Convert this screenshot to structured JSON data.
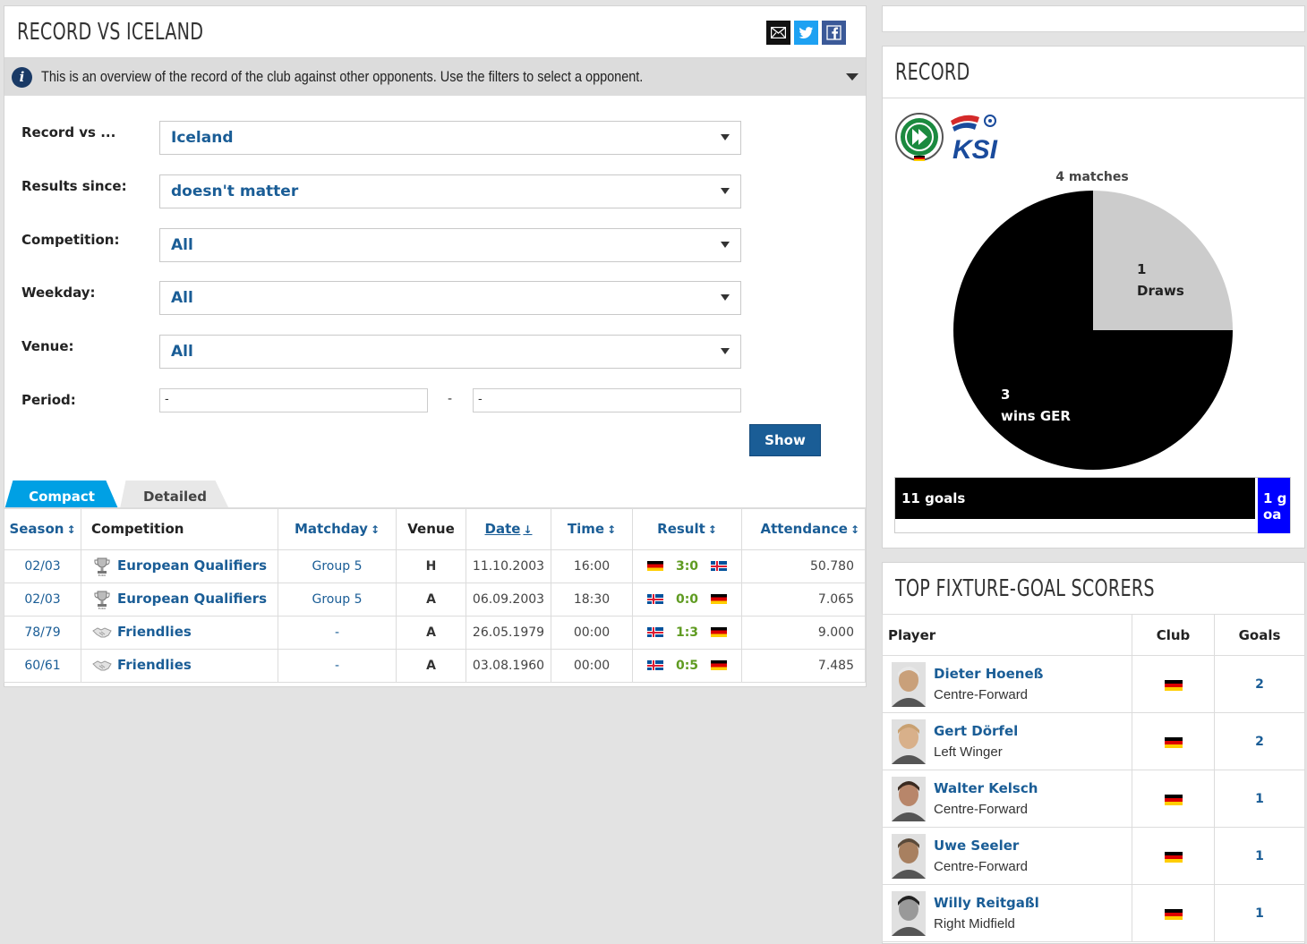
{
  "main": {
    "title": "RECORD VS ICELAND",
    "info_text": "This is an overview of the record of the club against other opponents. Use the filters to select a opponent.",
    "filters": [
      {
        "label": "Record vs ...",
        "value": "Iceland"
      },
      {
        "label": "Results since:",
        "value": "doesn't matter"
      },
      {
        "label": "Competition:",
        "value": "All"
      },
      {
        "label": "Weekday:",
        "value": "All"
      },
      {
        "label": "Venue:",
        "value": "All"
      }
    ],
    "period": {
      "label": "Period:",
      "from": "-",
      "separator": "-",
      "to": "-"
    },
    "show_button": "Show",
    "tabs": [
      "Compact",
      "Detailed"
    ],
    "columns": [
      "Season",
      "Competition",
      "Matchday",
      "Venue",
      "Date",
      "Time",
      "Result",
      "Attendance"
    ],
    "matches": [
      {
        "season": "02/03",
        "competition": "European Qualifiers",
        "matchday": "Group 5",
        "venue": "H",
        "date": "11.10.2003",
        "time": "16:00",
        "home_flag": "de",
        "score": "3:0",
        "away_flag": "is",
        "attendance": "50.780"
      },
      {
        "season": "02/03",
        "competition": "European Qualifiers",
        "matchday": "Group 5",
        "venue": "A",
        "date": "06.09.2003",
        "time": "18:30",
        "home_flag": "is",
        "score": "0:0",
        "away_flag": "de",
        "attendance": "7.065"
      },
      {
        "season": "78/79",
        "competition": "Friendlies",
        "matchday": "-",
        "venue": "A",
        "date": "26.05.1979",
        "time": "00:00",
        "home_flag": "is",
        "score": "1:3",
        "away_flag": "de",
        "attendance": "9.000"
      },
      {
        "season": "60/61",
        "competition": "Friendlies",
        "matchday": "-",
        "venue": "A",
        "date": "03.08.1960",
        "time": "00:00",
        "home_flag": "is",
        "score": "0:5",
        "away_flag": "de",
        "attendance": "7.485"
      }
    ]
  },
  "record": {
    "title": "RECORD",
    "matches_label": "4 matches",
    "ksi_text": "KSI",
    "draws_count": "1",
    "draws_label": "Draws",
    "wins_count": "3",
    "wins_label": "wins GER",
    "goals_home": "11 goals",
    "goals_away": "1 goa"
  },
  "chart_data": {
    "type": "pie",
    "title": "4 matches",
    "categories": [
      "wins GER",
      "Draws"
    ],
    "values": [
      3,
      1
    ],
    "colors": [
      "#000000",
      "#cccccc"
    ]
  },
  "goal_bar": {
    "values": [
      11,
      1
    ],
    "colors": [
      "#000000",
      "#0000ff"
    ]
  },
  "scorers": {
    "title": "TOP FIXTURE-GOAL SCORERS",
    "columns": [
      "Player",
      "Club",
      "Goals"
    ],
    "rows": [
      {
        "name": "Dieter Hoeneß",
        "position": "Centre-Forward",
        "goals": "2"
      },
      {
        "name": "Gert Dörfel",
        "position": "Left Winger",
        "goals": "2"
      },
      {
        "name": "Walter Kelsch",
        "position": "Centre-Forward",
        "goals": "1"
      },
      {
        "name": "Uwe Seeler",
        "position": "Centre-Forward",
        "goals": "1"
      },
      {
        "name": "Willy Reitgaßl",
        "position": "Right Midfield",
        "goals": "1"
      }
    ]
  }
}
